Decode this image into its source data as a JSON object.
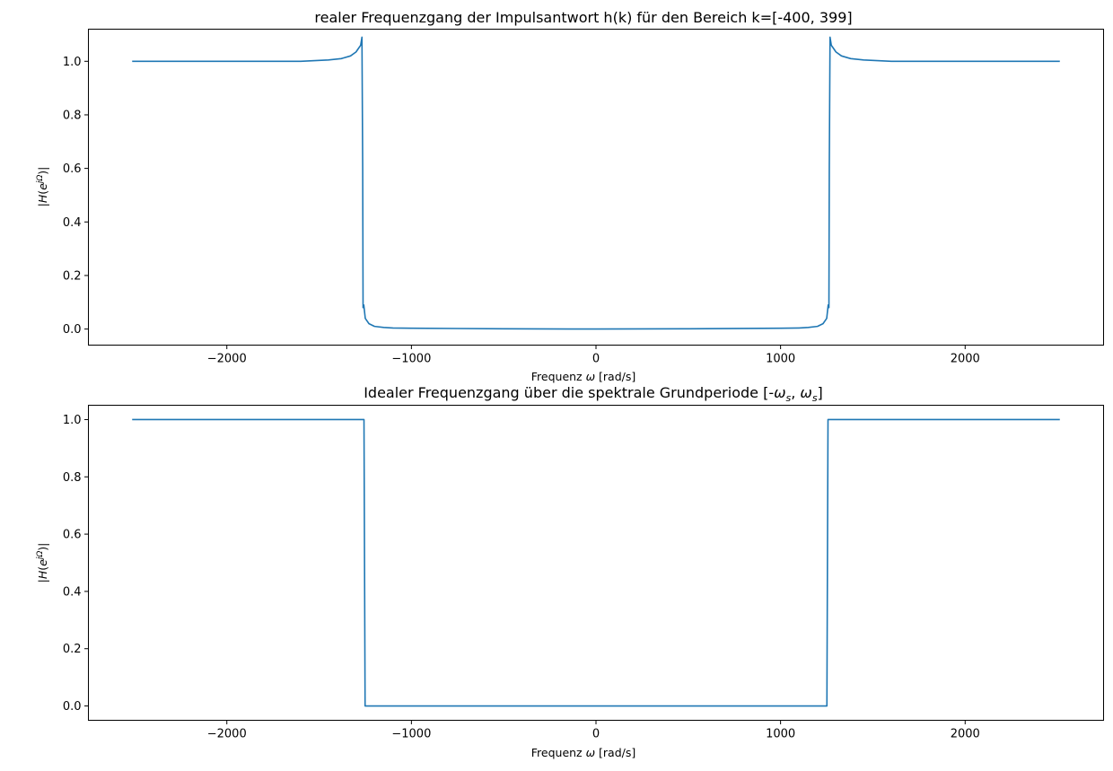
{
  "chart_data": [
    {
      "type": "line",
      "title": "realer Frequenzgang der Impulsantwort h(k) für den Bereich k=[-400, 399]",
      "xlabel": "Frequenz ω [rad/s]",
      "ylabel": "|H(e^{jΩ})|",
      "xlim": [
        -2750,
        2750
      ],
      "ylim": [
        -0.06,
        1.12
      ],
      "xticks": [
        -2000,
        -1000,
        0,
        1000,
        2000
      ],
      "xtick_labels": [
        "−2000",
        "−1000",
        "0",
        "1000",
        "2000"
      ],
      "yticks": [
        0.0,
        0.2,
        0.4,
        0.6,
        0.8,
        1.0
      ],
      "ytick_labels": [
        "0.0",
        "0.2",
        "0.4",
        "0.6",
        "0.8",
        "1.0"
      ],
      "grid": false,
      "color": "#1f77b4",
      "series": [
        {
          "x": [
            -2513,
            -1600,
            -1450,
            -1380,
            -1330,
            -1300,
            -1285,
            -1275,
            -1268,
            -1264,
            -1262,
            -1258,
            -1250,
            -1245,
            -1240,
            -1230,
            -1200,
            -1150,
            -1100,
            -1000,
            -500,
            0,
            500,
            1000,
            1100,
            1150,
            1200,
            1230,
            1240,
            1245,
            1250,
            1258,
            1262,
            1264,
            1268,
            1275,
            1285,
            1300,
            1330,
            1380,
            1450,
            1600,
            2513
          ],
          "y": [
            1.0,
            1.0,
            1.005,
            1.01,
            1.02,
            1.035,
            1.05,
            1.06,
            1.09,
            0.6,
            0.08,
            0.09,
            0.04,
            0.035,
            0.03,
            0.02,
            0.01,
            0.006,
            0.004,
            0.003,
            0.001,
            0.0,
            0.001,
            0.003,
            0.004,
            0.006,
            0.01,
            0.02,
            0.03,
            0.035,
            0.04,
            0.09,
            0.08,
            0.6,
            1.09,
            1.06,
            1.05,
            1.035,
            1.02,
            1.01,
            1.005,
            1.0,
            1.0
          ]
        }
      ]
    },
    {
      "type": "line",
      "title": "Idealer Frequenzgang über die spektrale Grundperiode [-ωs, ωs]",
      "xlabel": "Frequenz ω [rad/s]",
      "ylabel": "|H(e^{jΩ})|",
      "xlim": [
        -2750,
        2750
      ],
      "ylim": [
        -0.05,
        1.05
      ],
      "xticks": [
        -2000,
        -1000,
        0,
        1000,
        2000
      ],
      "xtick_labels": [
        "−2000",
        "−1000",
        "0",
        "1000",
        "2000"
      ],
      "yticks": [
        0.0,
        0.2,
        0.4,
        0.6,
        0.8,
        1.0
      ],
      "ytick_labels": [
        "0.0",
        "0.2",
        "0.4",
        "0.6",
        "0.8",
        "1.0"
      ],
      "grid": false,
      "color": "#1f77b4",
      "series": [
        {
          "x": [
            -2513,
            -1257,
            -1251,
            1251,
            1257,
            2513
          ],
          "y": [
            1.0,
            1.0,
            0.0,
            0.0,
            1.0,
            1.0
          ]
        }
      ]
    }
  ]
}
